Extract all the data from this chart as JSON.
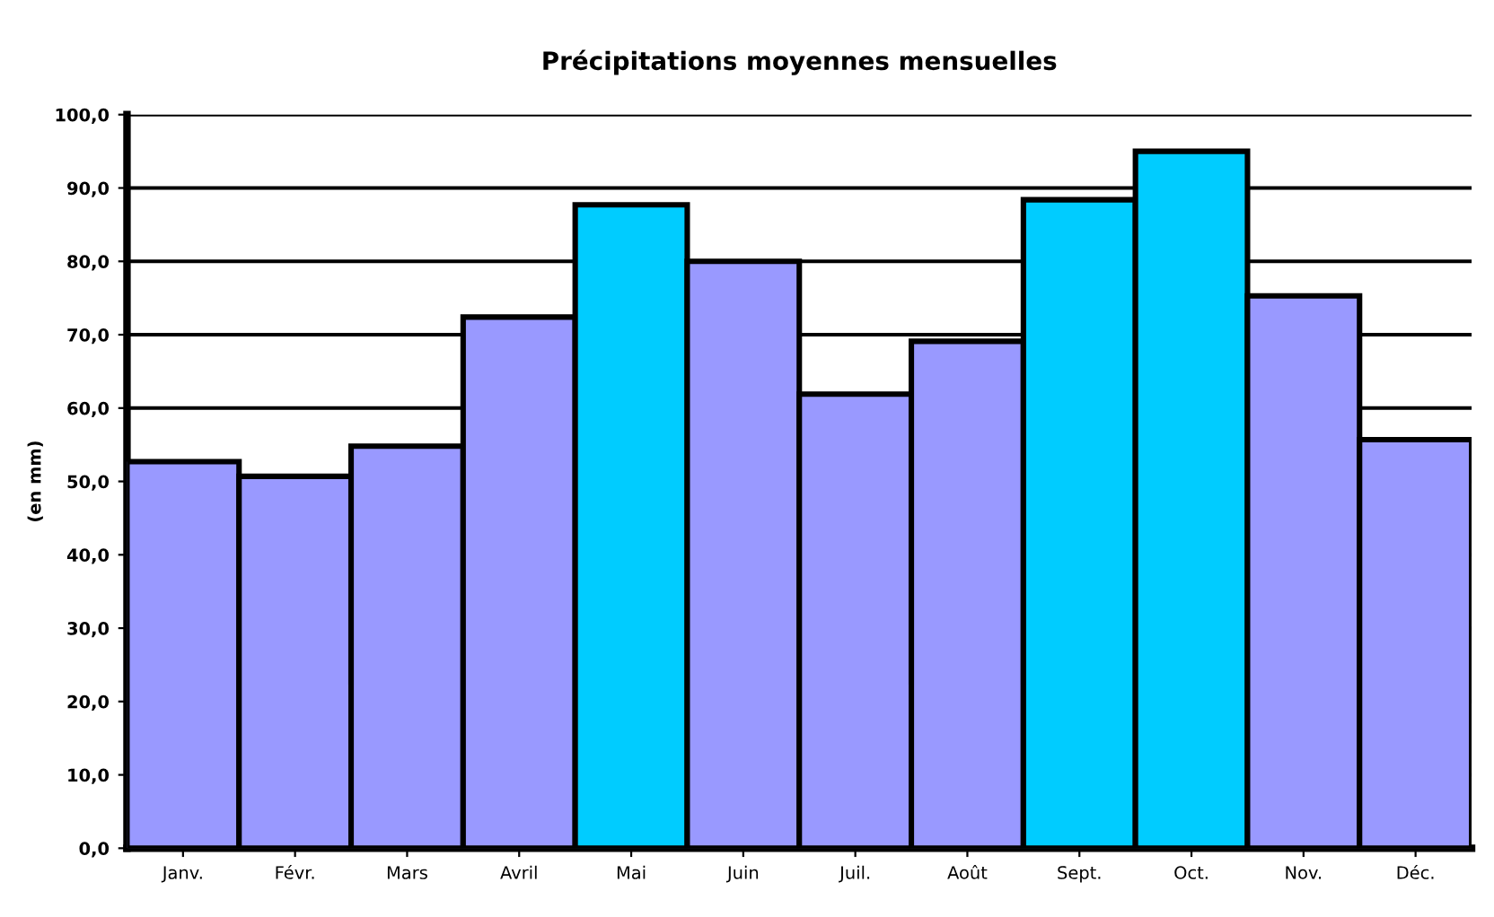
{
  "chart_data": {
    "type": "bar",
    "title": "Précipitations moyennes mensuelles",
    "ylabel": "(en mm)",
    "categories": [
      "Janv.",
      "Févr.",
      "Mars",
      "Avril",
      "Mai",
      "Juin",
      "Juil.",
      "Août",
      "Sept.",
      "Oct.",
      "Nov.",
      "Déc."
    ],
    "values": [
      52.7,
      50.7,
      54.8,
      72.4,
      87.7,
      80.0,
      61.9,
      69.1,
      88.4,
      95.0,
      75.3,
      55.7
    ],
    "colors": [
      "#9999ff",
      "#9999ff",
      "#9999ff",
      "#9999ff",
      "#00ccff",
      "#9999ff",
      "#9999ff",
      "#9999ff",
      "#00ccff",
      "#00ccff",
      "#9999ff",
      "#9999ff"
    ],
    "ylim": [
      0,
      100
    ],
    "yticks": [
      {
        "value": 0,
        "label": "0,0"
      },
      {
        "value": 10,
        "label": "10,0"
      },
      {
        "value": 20,
        "label": "20,0"
      },
      {
        "value": 30,
        "label": "30,0"
      },
      {
        "value": 40,
        "label": "40,0"
      },
      {
        "value": 50,
        "label": "50,0"
      },
      {
        "value": 60,
        "label": "60,0"
      },
      {
        "value": 70,
        "label": "70,0"
      },
      {
        "value": 80,
        "label": "80,0"
      },
      {
        "value": 90,
        "label": "90,0"
      },
      {
        "value": 100,
        "label": "100,0"
      }
    ],
    "grid": "y",
    "legend": false
  }
}
